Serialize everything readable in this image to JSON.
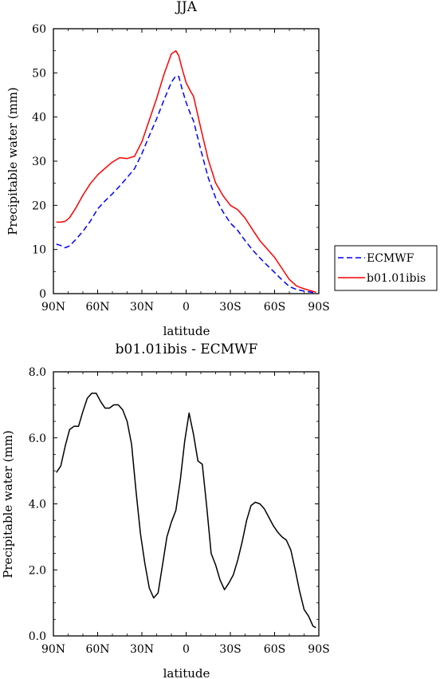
{
  "chart_data": [
    {
      "type": "line",
      "title": "JJA",
      "xlabel": "latitude",
      "ylabel": "Precipitable water (mm)",
      "xlim": [
        90,
        -90
      ],
      "ylim": [
        0,
        60
      ],
      "x_ticks": [
        90,
        60,
        30,
        0,
        -30,
        -60,
        -90
      ],
      "x_tick_labels": [
        "90N",
        "60N",
        "30N",
        "0",
        "30S",
        "60S",
        "90S"
      ],
      "y_ticks": [
        0,
        10,
        20,
        30,
        40,
        50,
        60
      ],
      "y_tick_labels": [
        "0",
        "10",
        "20",
        "30",
        "40",
        "50",
        "60"
      ],
      "grid": false,
      "legend_position": "right, outside plot",
      "series": [
        {
          "name": "ECMWF",
          "color": "#0000ff",
          "dash": "dashed",
          "x": [
            88,
            85,
            82,
            79,
            75,
            70,
            65,
            60,
            55,
            50,
            45,
            40,
            35,
            30,
            25,
            20,
            15,
            10,
            7,
            5,
            3,
            0,
            -3,
            -5,
            -10,
            -15,
            -20,
            -25,
            -30,
            -35,
            -40,
            -45,
            -50,
            -55,
            -60,
            -65,
            -70,
            -75,
            -80,
            -85,
            -88
          ],
          "values": [
            11.2,
            10.9,
            10.4,
            10.8,
            12.2,
            14.1,
            16.4,
            19.2,
            21.0,
            22.6,
            24.4,
            26.3,
            28.3,
            31.7,
            35.8,
            39.6,
            43.9,
            47.9,
            49.3,
            49.2,
            46.7,
            43.3,
            40.6,
            39.1,
            32.5,
            26.2,
            21.7,
            18.5,
            16.0,
            14.3,
            12.0,
            9.9,
            8.1,
            6.4,
            4.8,
            3.1,
            1.6,
            0.9,
            0.6,
            0.3,
            0.2
          ]
        },
        {
          "name": "b01.01ibis",
          "color": "#ff0000",
          "dash": "solid",
          "x": [
            88,
            85,
            82,
            79,
            75,
            70,
            65,
            60,
            55,
            50,
            45,
            40,
            35,
            30,
            25,
            20,
            15,
            10,
            7,
            5,
            3,
            0,
            -3,
            -5,
            -10,
            -15,
            -20,
            -25,
            -30,
            -35,
            -40,
            -45,
            -50,
            -55,
            -60,
            -65,
            -70,
            -75,
            -80,
            -85,
            -88
          ],
          "values": [
            16.2,
            16.2,
            16.4,
            17.2,
            19.3,
            22.3,
            24.9,
            26.9,
            28.4,
            29.8,
            30.8,
            30.6,
            31.1,
            34.4,
            39.3,
            44.2,
            49.7,
            54.3,
            55.0,
            53.9,
            51.3,
            47.8,
            45.8,
            44.7,
            37.4,
            30.3,
            25.1,
            22.2,
            20.0,
            19.0,
            17.1,
            14.5,
            12.0,
            10.1,
            8.2,
            5.7,
            3.2,
            1.7,
            1.1,
            0.6,
            0.3
          ]
        }
      ]
    },
    {
      "type": "line",
      "title": "b01.01ibis - ECMWF",
      "xlabel": "latitude",
      "ylabel": "Precipitable water (mm)",
      "xlim": [
        90,
        -90
      ],
      "ylim": [
        0,
        8
      ],
      "x_ticks": [
        90,
        60,
        30,
        0,
        -30,
        -60,
        -90
      ],
      "x_tick_labels": [
        "90N",
        "60N",
        "30N",
        "0",
        "30S",
        "60S",
        "90S"
      ],
      "y_ticks": [
        0,
        2,
        4,
        6,
        8
      ],
      "y_tick_labels": [
        "0.0",
        "2.0",
        "4.0",
        "6.0",
        "8.0"
      ],
      "grid": false,
      "series": [
        {
          "color": "#000000",
          "dash": "solid",
          "x": [
            88,
            85,
            82,
            79,
            76,
            73,
            70,
            67,
            64,
            61,
            58,
            55,
            52,
            49,
            46,
            43,
            40,
            37,
            34,
            31,
            28,
            25,
            22,
            19,
            16,
            13,
            10,
            7,
            4,
            1,
            -2,
            -5,
            -8,
            -11,
            -14,
            -17,
            -20,
            -23,
            -26,
            -29,
            -32,
            -35,
            -38,
            -41,
            -44,
            -47,
            -50,
            -53,
            -56,
            -59,
            -62,
            -65,
            -68,
            -71,
            -74,
            -77,
            -80,
            -83,
            -86,
            -88
          ],
          "values": [
            4.95,
            5.15,
            5.75,
            6.25,
            6.35,
            6.35,
            6.8,
            7.2,
            7.35,
            7.35,
            7.1,
            6.9,
            6.9,
            7.0,
            7.0,
            6.85,
            6.5,
            5.8,
            4.4,
            3.1,
            2.2,
            1.45,
            1.15,
            1.3,
            2.15,
            3.0,
            3.45,
            3.8,
            4.7,
            5.9,
            6.75,
            6.1,
            5.3,
            5.2,
            3.9,
            2.5,
            2.15,
            1.7,
            1.4,
            1.6,
            1.85,
            2.3,
            2.85,
            3.5,
            3.95,
            4.05,
            4.0,
            3.85,
            3.6,
            3.35,
            3.15,
            3.0,
            2.9,
            2.6,
            2.0,
            1.35,
            0.8,
            0.6,
            0.3,
            0.25
          ]
        }
      ]
    }
  ]
}
